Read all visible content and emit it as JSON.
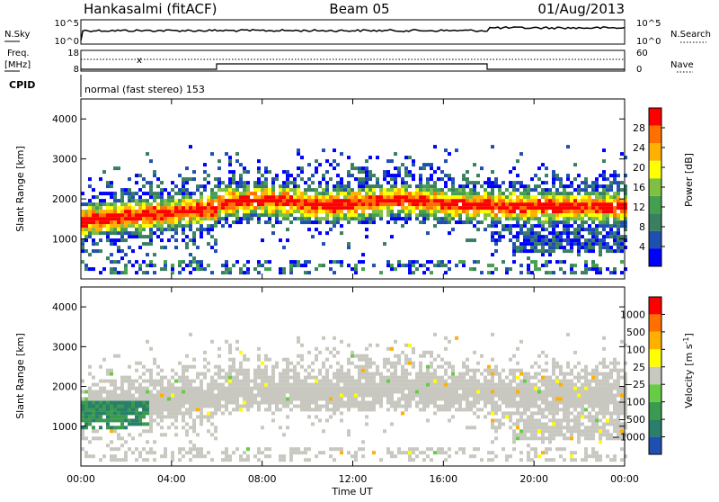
{
  "header": {
    "station": "Hankasalmi (fitACF)",
    "beam": "Beam 05",
    "date": "01/Aug/2013"
  },
  "top_panel": {
    "nsky_label": "N.Sky",
    "nsearch_label": "N.Search",
    "left_ticks": [
      "10^5",
      "10^0"
    ],
    "right_ticks": [
      "10^5",
      "10^0"
    ]
  },
  "freq_panel": {
    "freq_label_1": "Freq.",
    "freq_label_2": "[MHz]",
    "nave_label": "Nave",
    "cpid_label": "CPID",
    "left_ticks": [
      "18",
      "8"
    ],
    "right_ticks": [
      "60",
      "0"
    ],
    "mode_text": "normal (fast stereo) 153",
    "freq_marker": "x"
  },
  "colors": {
    "power": [
      "#0000ff",
      "#1f4fb0",
      "#3a8060",
      "#44a050",
      "#80c040",
      "#ffff00",
      "#ffb000",
      "#ff7000",
      "#ff0000"
    ],
    "velocity": [
      "#1f4fb0",
      "#2a7f6a",
      "#3a9a50",
      "#66cc44",
      "#c8c8c0",
      "#ffff00",
      "#ffb000",
      "#ff7000",
      "#ff0000"
    ]
  },
  "chart_data": [
    {
      "type": "heatmap",
      "panel": "power",
      "ylabel": "Slant Range [km]",
      "yticks": [
        "1000",
        "2000",
        "3000",
        "4000"
      ],
      "ylim": [
        0,
        4500
      ],
      "colorbar_label": "Power [dB]",
      "colorbar_ticks": [
        "4",
        "8",
        "12",
        "16",
        "20",
        "24",
        "28"
      ],
      "grid": false
    },
    {
      "type": "heatmap",
      "panel": "velocity",
      "ylabel": "Slant Range [km]",
      "yticks": [
        "1000",
        "2000",
        "3000",
        "4000"
      ],
      "ylim": [
        0,
        4500
      ],
      "colorbar_label": "Velocity",
      "colorbar_unit": "[m s",
      "colorbar_unit_sup": "-1",
      "colorbar_unit_end": "]",
      "colorbar_ticks": [
        "1000",
        "500",
        "100",
        "25",
        "−25",
        "−100",
        "−500",
        "−1000"
      ],
      "xlabel": "Time UT",
      "xticks": [
        "00:00",
        "04:00",
        "08:00",
        "12:00",
        "16:00",
        "20:00",
        "00:00"
      ],
      "xlim": [
        0,
        24
      ]
    }
  ]
}
